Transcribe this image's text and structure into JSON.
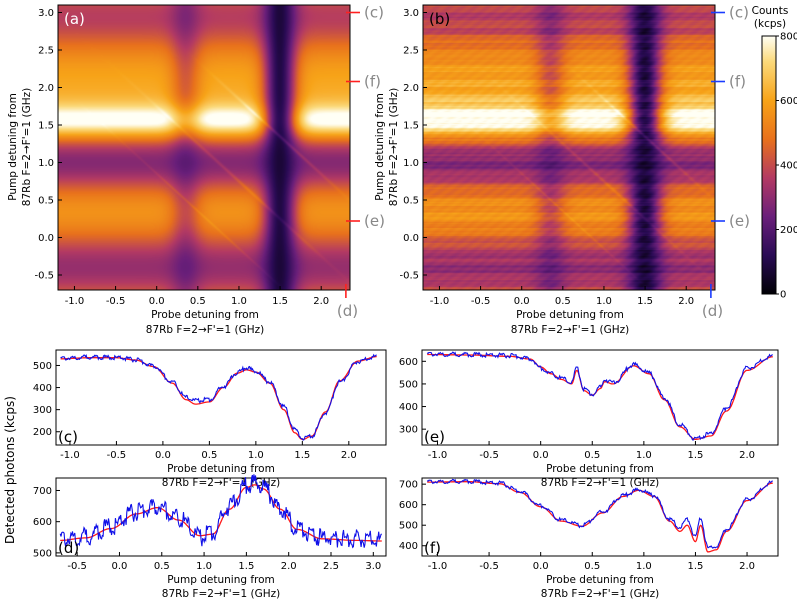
{
  "colors": {
    "fit_red": "#ff1a1a",
    "data_blue": "#1010e8",
    "marker_red": "#ff2020",
    "marker_blue": "#1a3cff",
    "label_gray": "#888888"
  },
  "colormap_name": "inferno-like (black→purple→orange→white)",
  "colorbar": {
    "title_line1": "Counts",
    "title_line2": "(kcps)",
    "min": 0,
    "max": 800,
    "ticks": [
      0,
      200,
      400,
      600,
      800
    ],
    "tick_labels": [
      "0",
      "200",
      "400",
      "600",
      "800"
    ]
  },
  "chart_data": [
    {
      "id": "a",
      "type": "heatmap",
      "panel_label": "(a)",
      "xlabel_line1": "Probe detuning from",
      "xlabel_line2": "87Rb F=2→F'=1 (GHz)",
      "ylabel_line1": "Pump detuning from",
      "ylabel_line2": "87Rb F=2→F'=1 (GHz)",
      "xlim": [
        -1.2,
        2.35
      ],
      "ylim": [
        -0.7,
        3.1
      ],
      "xticks": [
        -1.0,
        -0.5,
        0.0,
        0.5,
        1.0,
        1.5,
        2.0
      ],
      "xtick_labels": [
        "-1.0",
        "-0.5",
        "0.0",
        "0.5",
        "1.0",
        "1.5",
        "2.0"
      ],
      "yticks": [
        -0.5,
        0.0,
        0.5,
        1.0,
        1.5,
        2.0,
        2.5,
        3.0
      ],
      "ytick_labels": [
        "-0.5",
        "0.0",
        "0.5",
        "1.0",
        "1.5",
        "2.0",
        "2.5",
        "3.0"
      ],
      "markers": [
        {
          "label": "(c)",
          "axis": "y",
          "value": 3.0
        },
        {
          "label": "(f)",
          "axis": "y",
          "value": 2.08
        },
        {
          "label": "(e)",
          "axis": "y",
          "value": 0.22
        },
        {
          "label": "(d)",
          "axis": "x",
          "value": 2.3
        }
      ],
      "noise": 0
    },
    {
      "id": "b",
      "type": "heatmap",
      "panel_label": "(b)",
      "xlabel_line1": "Probe detuning from",
      "xlabel_line2": "87Rb F=2→F'=1 (GHz)",
      "ylabel_line1": "Pump detuning from",
      "ylabel_line2": "87Rb F=2→F'=1 (GHz)",
      "xlim": [
        -1.2,
        2.35
      ],
      "ylim": [
        -0.7,
        3.1
      ],
      "xticks": [
        -1.0,
        -0.5,
        0.0,
        0.5,
        1.0,
        1.5,
        2.0
      ],
      "xtick_labels": [
        "-1.0",
        "-0.5",
        "0.0",
        "0.5",
        "1.0",
        "1.5",
        "2.0"
      ],
      "yticks": [
        -0.5,
        0.0,
        0.5,
        1.0,
        1.5,
        2.0,
        2.5,
        3.0
      ],
      "ytick_labels": [
        "-0.5",
        "0.0",
        "0.5",
        "1.0",
        "1.5",
        "2.0",
        "2.5",
        "3.0"
      ],
      "markers": [
        {
          "label": "(c)",
          "axis": "y",
          "value": 3.0
        },
        {
          "label": "(f)",
          "axis": "y",
          "value": 2.08
        },
        {
          "label": "(e)",
          "axis": "y",
          "value": 0.22
        },
        {
          "label": "(d)",
          "axis": "x",
          "value": 2.3
        }
      ],
      "noise": 1
    },
    {
      "id": "c",
      "type": "line",
      "panel_label": "(c)",
      "xlabel_line1": "Probe detuning from",
      "xlabel_line2": "87Rb F=2→F'=1 (GHz)",
      "xlim": [
        -1.15,
        2.4
      ],
      "ylim": [
        140,
        570
      ],
      "xticks": [
        -1.0,
        -0.5,
        0.0,
        0.5,
        1.0,
        1.5,
        2.0
      ],
      "xtick_labels": [
        "-1.0",
        "-0.5",
        "0.0",
        "0.5",
        "1.0",
        "1.5",
        "2.0"
      ],
      "yticks": [
        200,
        300,
        400,
        500
      ],
      "ytick_labels": [
        "200",
        "300",
        "400",
        "500"
      ],
      "series": [
        {
          "name": "fit",
          "x": [
            -1.1,
            -0.8,
            -0.5,
            -0.3,
            -0.1,
            0.1,
            0.25,
            0.35,
            0.5,
            0.65,
            0.8,
            0.9,
            1.0,
            1.15,
            1.3,
            1.42,
            1.5,
            1.6,
            1.75,
            1.9,
            2.1,
            2.3
          ],
          "y": [
            530,
            535,
            535,
            525,
            495,
            420,
            345,
            325,
            335,
            400,
            465,
            480,
            470,
            420,
            300,
            195,
            165,
            180,
            290,
            430,
            520,
            540
          ]
        },
        {
          "name": "data",
          "x": [
            -1.1,
            -0.8,
            -0.5,
            -0.3,
            -0.1,
            0.1,
            0.25,
            0.35,
            0.5,
            0.65,
            0.8,
            0.9,
            1.0,
            1.15,
            1.3,
            1.42,
            1.5,
            1.6,
            1.75,
            1.9,
            2.1,
            2.3
          ],
          "y": [
            532,
            538,
            536,
            526,
            498,
            425,
            355,
            340,
            345,
            405,
            468,
            490,
            472,
            425,
            315,
            210,
            172,
            180,
            285,
            425,
            518,
            540
          ]
        }
      ]
    },
    {
      "id": "d",
      "type": "line",
      "panel_label": "(d)",
      "xlabel_line1": "Pump detuning from",
      "xlabel_line2": "87Rb F=2→F'=1 (GHz)",
      "xlim": [
        -0.75,
        3.15
      ],
      "ylim": [
        490,
        740
      ],
      "xticks": [
        -0.5,
        0.0,
        0.5,
        1.0,
        1.5,
        2.0,
        2.5,
        3.0
      ],
      "xtick_labels": [
        "-0.5",
        "0.0",
        "0.5",
        "1.0",
        "1.5",
        "2.0",
        "2.5",
        "3.0"
      ],
      "yticks": [
        500,
        600,
        700
      ],
      "ytick_labels": [
        "500",
        "600",
        "700"
      ],
      "series": [
        {
          "name": "fit",
          "x": [
            -0.7,
            -0.4,
            -0.1,
            0.2,
            0.45,
            0.7,
            0.95,
            1.1,
            1.3,
            1.5,
            1.6,
            1.7,
            1.9,
            2.1,
            2.4,
            2.8,
            3.1
          ],
          "y": [
            540,
            548,
            578,
            625,
            645,
            605,
            555,
            560,
            640,
            710,
            718,
            705,
            640,
            575,
            545,
            540,
            538
          ]
        },
        {
          "name": "data",
          "x": [
            -0.7,
            -0.4,
            -0.1,
            0.2,
            0.45,
            0.7,
            0.95,
            1.1,
            1.3,
            1.5,
            1.6,
            1.7,
            1.9,
            2.1,
            2.4,
            2.8,
            3.1
          ],
          "y": [
            545,
            552,
            585,
            630,
            650,
            610,
            550,
            565,
            650,
            715,
            725,
            708,
            645,
            580,
            548,
            545,
            540
          ]
        }
      ]
    },
    {
      "id": "e",
      "type": "line",
      "panel_label": "(e)",
      "xlabel_line1": "Probe detuning from",
      "xlabel_line2": "87Rb F=2→F'=1 (GHz)",
      "xlim": [
        -1.15,
        2.3
      ],
      "ylim": [
        230,
        650
      ],
      "xticks": [
        -1.0,
        -0.5,
        0.0,
        0.5,
        1.0,
        1.5,
        2.0
      ],
      "xtick_labels": [
        "-1.0",
        "-0.5",
        "0.0",
        "0.5",
        "1.0",
        "1.5",
        "2.0"
      ],
      "yticks": [
        300,
        400,
        500,
        600
      ],
      "ytick_labels": [
        "300",
        "400",
        "500",
        "600"
      ],
      "series": [
        {
          "name": "fit",
          "x": [
            -1.1,
            -0.7,
            -0.3,
            -0.1,
            0.0,
            0.1,
            0.2,
            0.3,
            0.35,
            0.42,
            0.5,
            0.58,
            0.62,
            0.7,
            0.9,
            1.05,
            1.2,
            1.35,
            1.5,
            1.65,
            1.8,
            2.0,
            2.25
          ],
          "y": [
            630,
            628,
            622,
            610,
            575,
            545,
            520,
            500,
            560,
            470,
            450,
            480,
            510,
            500,
            580,
            545,
            430,
            310,
            255,
            270,
            380,
            560,
            620
          ]
        },
        {
          "name": "data",
          "x": [
            -1.1,
            -0.7,
            -0.3,
            -0.1,
            0.0,
            0.1,
            0.2,
            0.3,
            0.35,
            0.42,
            0.5,
            0.58,
            0.62,
            0.7,
            0.9,
            1.05,
            1.2,
            1.35,
            1.5,
            1.65,
            1.8,
            2.0,
            2.25
          ],
          "y": [
            632,
            630,
            625,
            612,
            570,
            545,
            525,
            505,
            570,
            475,
            455,
            485,
            520,
            505,
            585,
            548,
            440,
            320,
            258,
            280,
            395,
            570,
            622
          ]
        }
      ]
    },
    {
      "id": "f",
      "type": "line",
      "panel_label": "(f)",
      "xlabel_line1": "Probe detuning from",
      "xlabel_line2": "87Rb F=2→F'=1 (GHz)",
      "xlim": [
        -1.15,
        2.3
      ],
      "ylim": [
        350,
        730
      ],
      "xticks": [
        -1.0,
        -0.5,
        0.0,
        0.5,
        1.0,
        1.5,
        2.0
      ],
      "xtick_labels": [
        "-1.0",
        "-0.5",
        "0.0",
        "0.5",
        "1.0",
        "1.5",
        "2.0"
      ],
      "yticks": [
        400,
        500,
        600,
        700
      ],
      "ytick_labels": [
        "400",
        "500",
        "600",
        "700"
      ],
      "series": [
        {
          "name": "fit",
          "x": [
            -1.1,
            -0.7,
            -0.4,
            -0.2,
            0.0,
            0.2,
            0.4,
            0.6,
            0.8,
            0.95,
            1.1,
            1.25,
            1.35,
            1.42,
            1.5,
            1.55,
            1.62,
            1.7,
            1.8,
            2.0,
            2.25
          ],
          "y": [
            710,
            712,
            702,
            660,
            590,
            520,
            495,
            560,
            640,
            670,
            640,
            520,
            470,
            500,
            420,
            500,
            370,
            380,
            470,
            620,
            705
          ]
        },
        {
          "name": "data",
          "x": [
            -1.1,
            -0.7,
            -0.4,
            -0.2,
            0.0,
            0.2,
            0.4,
            0.6,
            0.8,
            0.95,
            1.1,
            1.25,
            1.35,
            1.42,
            1.5,
            1.55,
            1.62,
            1.7,
            1.8,
            2.0,
            2.25
          ],
          "y": [
            712,
            714,
            705,
            665,
            595,
            525,
            498,
            565,
            645,
            672,
            645,
            530,
            490,
            530,
            445,
            535,
            390,
            395,
            480,
            625,
            708
          ]
        }
      ]
    }
  ],
  "shared_ylabel": "Detected photons (kcps)"
}
